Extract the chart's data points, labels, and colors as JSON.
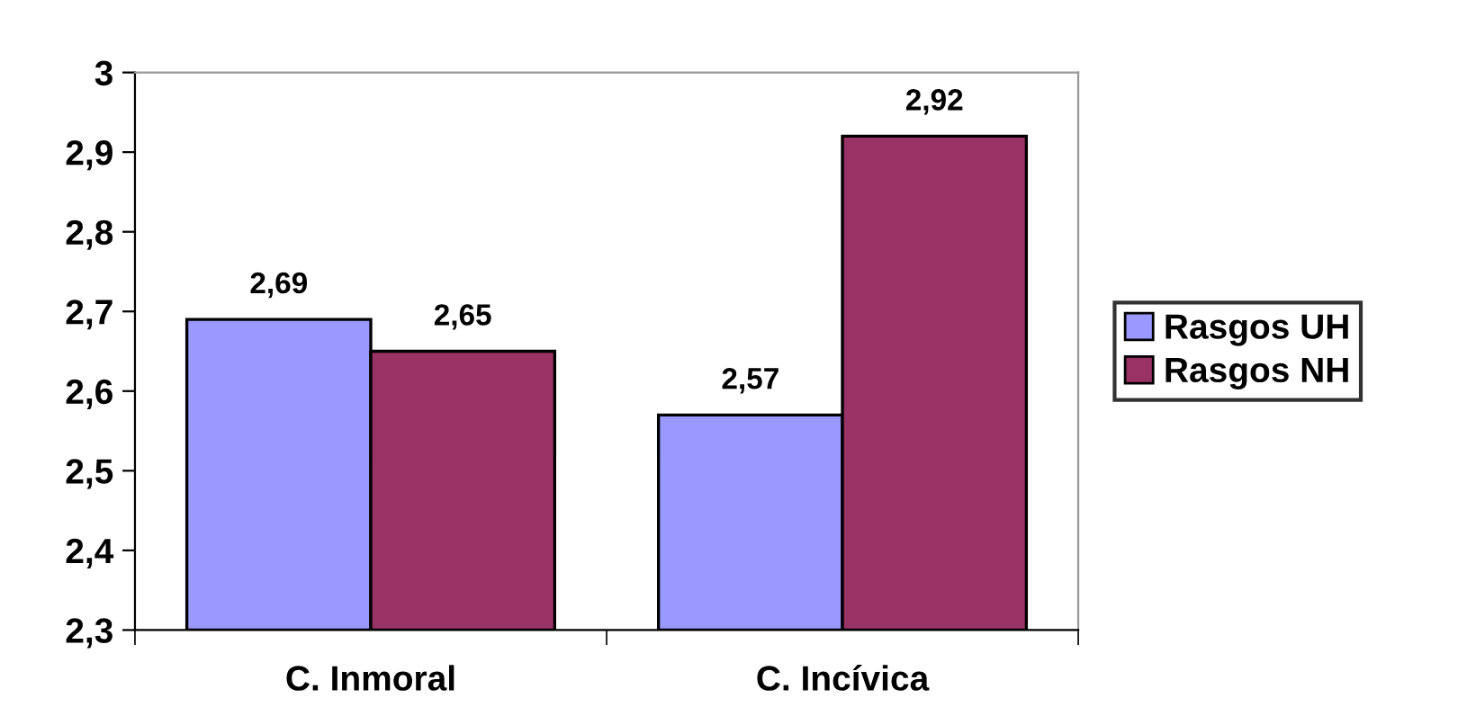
{
  "chart_data": {
    "type": "bar",
    "categories": [
      "C. Inmoral",
      "C. Incívica"
    ],
    "series": [
      {
        "name": "Rasgos UH",
        "color": "#9999ff",
        "values": [
          2.69,
          2.57
        ],
        "value_labels": [
          "2,69",
          "2,57"
        ]
      },
      {
        "name": "Rasgos NH",
        "color": "#993366",
        "values": [
          2.65,
          2.92
        ],
        "value_labels": [
          "2,65",
          "2,92"
        ]
      }
    ],
    "ylim": [
      2.3,
      3
    ],
    "yticks": [
      {
        "value": 2.3,
        "label": "2,3"
      },
      {
        "value": 2.4,
        "label": "2,4"
      },
      {
        "value": 2.5,
        "label": "2,5"
      },
      {
        "value": 2.6,
        "label": "2,6"
      },
      {
        "value": 2.7,
        "label": "2,7"
      },
      {
        "value": 2.8,
        "label": "2,8"
      },
      {
        "value": 2.9,
        "label": "2,9"
      },
      {
        "value": 3,
        "label": "3"
      }
    ],
    "grid": false,
    "legend": "right"
  }
}
